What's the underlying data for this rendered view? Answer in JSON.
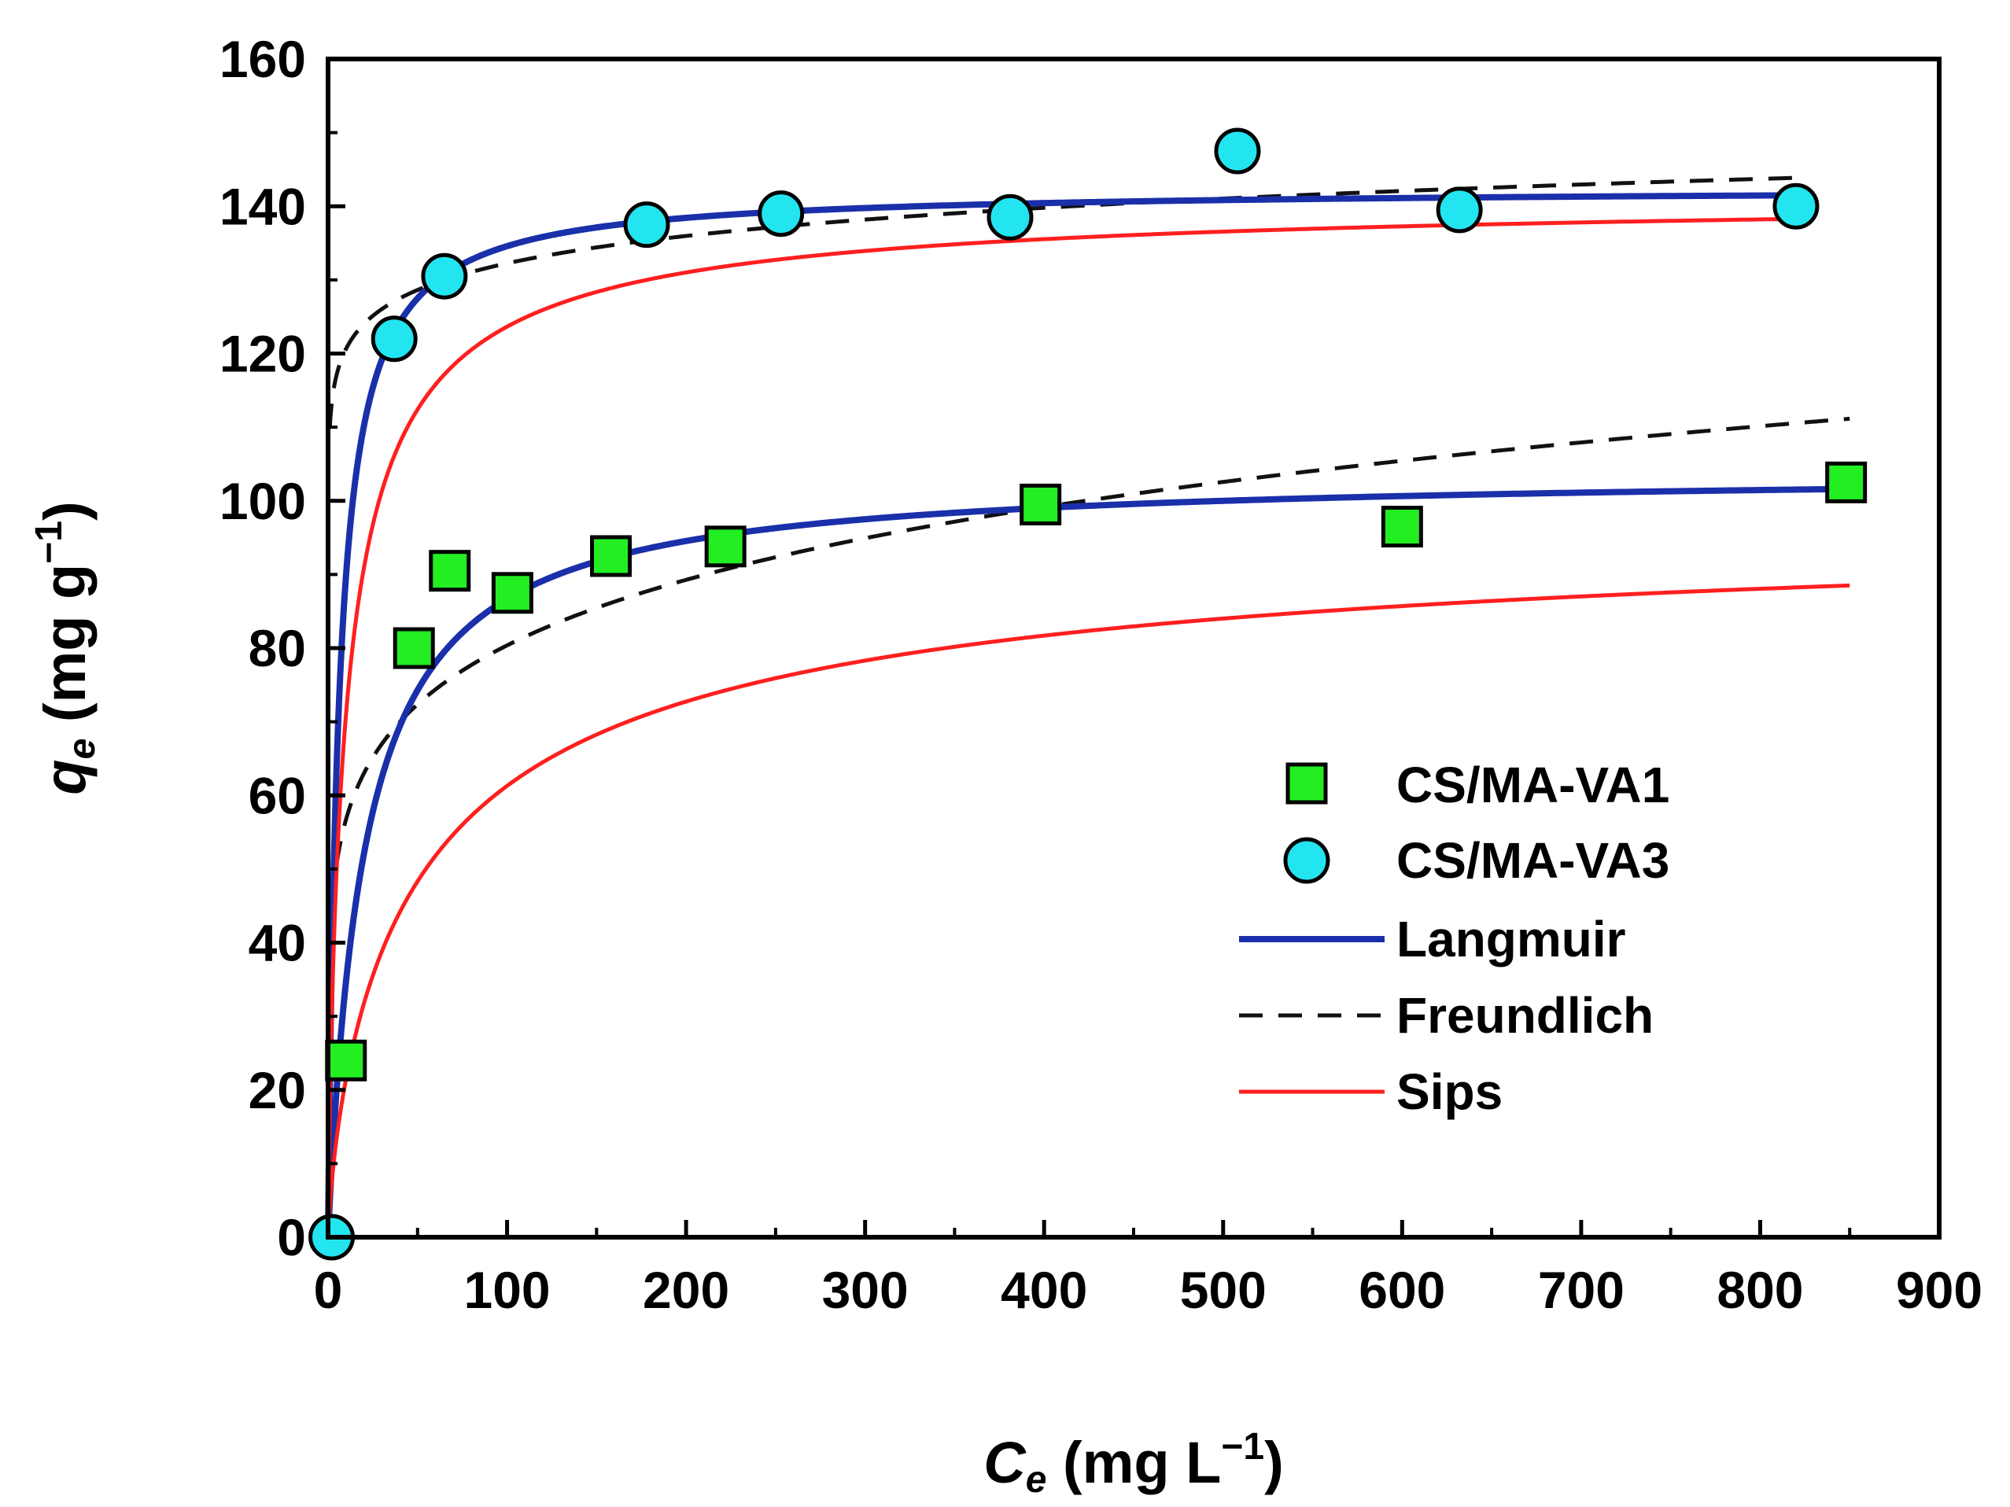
{
  "chart_data": {
    "type": "scatter",
    "title": "",
    "xlabel": {
      "symbol": "C",
      "subscript": "e",
      "units": " (mg L",
      "superscript": "−1",
      "close": ")"
    },
    "ylabel": {
      "symbol": "q",
      "subscript": "e",
      "units": " (mg g",
      "superscript": "−1",
      "close": ")"
    },
    "xlim": [
      0,
      900
    ],
    "ylim": [
      0,
      160
    ],
    "xticks": [
      0,
      100,
      200,
      300,
      400,
      500,
      600,
      700,
      800,
      900
    ],
    "yticks": [
      0,
      20,
      40,
      60,
      80,
      100,
      120,
      140,
      160
    ],
    "grid": false,
    "legend_position": "lower-right",
    "colors": {
      "va1_fill": "#22ee22",
      "va3_fill": "#22e5f0",
      "langmuir": "#1a2faa",
      "freundlich": "#111111",
      "sips": "#ff1f1f"
    },
    "legend": [
      {
        "label": "CS/MA-VA1",
        "kind": "square"
      },
      {
        "label": "CS/MA-VA3",
        "kind": "circle"
      },
      {
        "label": "Langmuir",
        "kind": "line-solid-blue"
      },
      {
        "label": "Freundlich",
        "kind": "line-dashed"
      },
      {
        "label": "Sips",
        "kind": "line-solid-red"
      }
    ],
    "series": [
      {
        "name": "CS/MA-VA1",
        "marker": "square",
        "x": [
          10,
          48,
          68,
          103,
          158,
          222,
          398,
          600,
          848
        ],
        "y": [
          24,
          80,
          90.5,
          87.5,
          92.5,
          93.8,
          99.5,
          96.5,
          102.5
        ]
      },
      {
        "name": "CS/MA-VA3",
        "marker": "circle",
        "x": [
          2,
          37,
          65,
          178,
          253,
          381,
          508,
          632,
          820
        ],
        "y": [
          0,
          122,
          130.5,
          137.5,
          139,
          138.5,
          147.5,
          139.5,
          140
        ]
      }
    ],
    "fits": [
      {
        "series": "CS/MA-VA1",
        "model": "Langmuir",
        "qmax": 104,
        "KL": 0.05,
        "x_range": [
          0,
          850
        ]
      },
      {
        "series": "CS/MA-VA1",
        "model": "Freundlich",
        "KF": 40,
        "n": 6.6,
        "x_range": [
          1,
          850
        ]
      },
      {
        "series": "CS/MA-VA1",
        "model": "Sips",
        "qm": 99,
        "Ks": 0.0188,
        "ns": 1.3,
        "x_range": [
          0,
          850
        ]
      },
      {
        "series": "CS/MA-VA3",
        "model": "Langmuir",
        "qmax": 142.5,
        "KL": 0.17,
        "x_range": [
          0,
          820
        ]
      },
      {
        "series": "CS/MA-VA3",
        "model": "Freundlich",
        "KF": 110,
        "n": 25,
        "x_range": [
          1,
          820
        ]
      },
      {
        "series": "CS/MA-VA3",
        "model": "Sips",
        "qm": 141.8,
        "Ks": 0.1,
        "ns": 1.2,
        "x_range": [
          0,
          820
        ]
      }
    ]
  }
}
